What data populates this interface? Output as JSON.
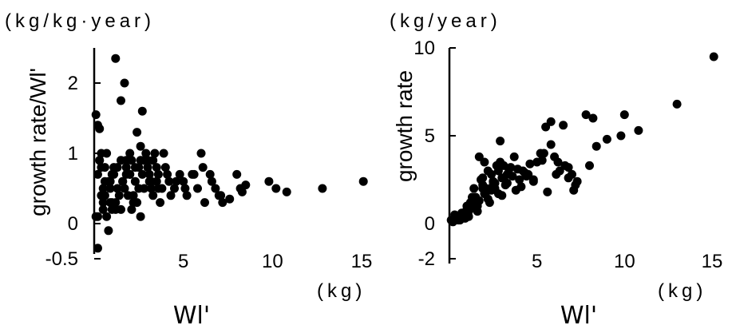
{
  "chart_data": [
    {
      "type": "scatter",
      "title": "",
      "ylabel": "growth rate/Wl'",
      "yunit": "(kg/kg·year)",
      "xlabel": "Wl'",
      "xunit": "(kg)",
      "xlim": [
        0,
        15.5
      ],
      "ylim": [
        -0.5,
        2.4
      ],
      "xticks": [
        "5",
        "10",
        "15"
      ],
      "yticks": [
        "-0.5",
        "0",
        "1",
        "2"
      ],
      "x": [
        0.1,
        0.2,
        0.3,
        0.1,
        0.2,
        0.5,
        0.6,
        0.3,
        0.4,
        0.5,
        0.5,
        0.7,
        0.8,
        0.8,
        0.9,
        1.0,
        1.0,
        1.1,
        1.2,
        1.3,
        1.2,
        1.5,
        1.5,
        1.6,
        1.7,
        1.8,
        1.9,
        2.0,
        2.0,
        2.1,
        2.2,
        2.3,
        2.4,
        2.5,
        2.6,
        2.6,
        2.7,
        2.8,
        2.9,
        3.0,
        3.1,
        3.2,
        3.3,
        3.4,
        3.5,
        3.6,
        3.8,
        4.0,
        4.2,
        4.5,
        4.8,
        5.0,
        5.2,
        5.5,
        5.8,
        6.0,
        6.2,
        6.5,
        6.8,
        7.0,
        7.2,
        8.0,
        8.2,
        8.5,
        9.8,
        10.2,
        10.8,
        12.8,
        15.1,
        0.2,
        0.4,
        0.7,
        0.9,
        1.1,
        1.4,
        1.6,
        1.8,
        2.1,
        2.3,
        2.5,
        2.7,
        3.0,
        3.2,
        3.5,
        3.7,
        4.1,
        4.6,
        5.1,
        5.6,
        6.1,
        6.6,
        7.1,
        7.6,
        8.3,
        0.2,
        0.4,
        0.6,
        0.9,
        1.2,
        1.5,
        1.8,
        2.2,
        2.6,
        3.1,
        3.6,
        4.3,
        0.3,
        0.6,
        1.0,
        1.3,
        1.7,
        2.0,
        2.4,
        2.8,
        3.3,
        3.9
      ],
      "y": [
        1.55,
        1.4,
        1.35,
        0.1,
        -0.35,
        0.5,
        0.4,
        0.9,
        1.0,
        0.2,
        0.3,
        0.1,
        -0.1,
        0.6,
        0.5,
        0.7,
        0.3,
        0.8,
        0.2,
        0.5,
        2.35,
        1.75,
        0.9,
        0.6,
        2.0,
        0.8,
        0.4,
        0.7,
        1.0,
        0.9,
        0.3,
        0.6,
        1.3,
        0.8,
        1.1,
        0.1,
        1.6,
        0.5,
        1.0,
        0.8,
        0.7,
        0.5,
        0.9,
        1.0,
        0.6,
        0.7,
        0.5,
        0.8,
        0.6,
        0.5,
        0.7,
        0.6,
        0.4,
        0.7,
        0.5,
        1.0,
        0.3,
        0.7,
        0.5,
        0.4,
        0.3,
        0.7,
        0.5,
        0.55,
        0.6,
        0.5,
        0.45,
        0.5,
        0.6,
        0.1,
        0.8,
        1.0,
        0.3,
        0.7,
        0.4,
        0.6,
        0.9,
        0.2,
        0.8,
        0.5,
        0.7,
        0.9,
        0.6,
        0.8,
        0.3,
        0.7,
        0.6,
        0.5,
        0.7,
        0.8,
        0.6,
        0.4,
        0.35,
        0.45,
        0.7,
        0.4,
        0.8,
        0.6,
        0.3,
        0.2,
        0.7,
        0.4,
        0.9,
        0.6,
        0.5,
        0.4,
        0.9,
        0.6,
        0.2,
        0.8,
        0.5,
        0.7,
        0.3,
        0.9,
        0.4,
        1.0
      ],
      "grid": false,
      "legend": "none"
    },
    {
      "type": "scatter",
      "title": "",
      "ylabel": "growth rate",
      "yunit": "(kg/year)",
      "xlabel": "Wl'",
      "xunit": "(kg)",
      "xlim": [
        0,
        15.5
      ],
      "ylim": [
        -2,
        10
      ],
      "xticks": [
        "5",
        "10",
        "15"
      ],
      "yticks": [
        "-2",
        "0",
        "5",
        "10"
      ],
      "x": [
        0.1,
        0.2,
        0.3,
        0.5,
        0.6,
        0.8,
        0.9,
        1.0,
        1.1,
        1.2,
        1.3,
        1.4,
        1.5,
        1.6,
        1.7,
        1.8,
        1.9,
        2.0,
        2.0,
        2.1,
        2.2,
        2.3,
        2.4,
        2.5,
        2.6,
        2.7,
        2.8,
        2.9,
        3.0,
        3.1,
        3.2,
        3.3,
        3.5,
        3.7,
        4.0,
        4.2,
        4.5,
        4.8,
        5.0,
        5.2,
        5.5,
        5.6,
        5.8,
        6.0,
        6.2,
        6.5,
        6.8,
        7.0,
        7.2,
        7.8,
        8.0,
        8.2,
        8.4,
        9.0,
        9.8,
        10.0,
        10.8,
        13.0,
        15.1,
        0.3,
        0.5,
        0.7,
        1.0,
        1.3,
        1.6,
        1.9,
        2.2,
        2.5,
        2.8,
        3.1,
        3.4,
        3.8,
        4.3,
        4.8,
        5.3,
        5.8,
        6.3,
        6.8,
        7.3,
        0.4,
        0.8,
        1.2,
        1.7,
        2.1,
        2.6,
        3.0,
        3.6,
        4.1,
        4.6,
        5.4,
        6.1,
        6.6,
        7.1,
        0.6,
        1.1,
        1.5,
        1.9,
        2.4,
        2.9,
        3.3,
        3.9,
        4.4
      ],
      "y": [
        0.2,
        0.1,
        0.3,
        0.4,
        0.2,
        0.5,
        0.3,
        0.8,
        0.4,
        1.2,
        0.9,
        2.0,
        1.5,
        1.0,
        3.8,
        2.5,
        2.2,
        1.7,
        3.5,
        2.0,
        3.0,
        1.2,
        2.8,
        2.4,
        2.0,
        3.3,
        3.0,
        4.7,
        2.6,
        3.3,
        2.2,
        2.8,
        3.2,
        3.8,
        2.5,
        3.0,
        2.8,
        2.5,
        3.5,
        4.0,
        5.5,
        1.8,
        5.8,
        3.8,
        3.5,
        5.6,
        3.2,
        2.8,
        2.2,
        6.2,
        3.3,
        6.0,
        4.4,
        4.8,
        5.0,
        6.2,
        5.3,
        6.8,
        9.5,
        0.5,
        0.2,
        0.6,
        1.0,
        1.5,
        0.7,
        2.0,
        1.4,
        2.2,
        1.7,
        2.6,
        3.1,
        1.9,
        2.9,
        2.4,
        3.6,
        4.5,
        3.0,
        2.6,
        2.4,
        0.3,
        0.6,
        0.9,
        1.3,
        1.8,
        2.3,
        1.6,
        2.7,
        2.1,
        3.4,
        4.0,
        2.8,
        3.3,
        1.9,
        0.4,
        0.7,
        1.1,
        2.6,
        1.9,
        3.5,
        2.3,
        3.1,
        2.7
      ],
      "grid": false,
      "legend": "none"
    }
  ]
}
